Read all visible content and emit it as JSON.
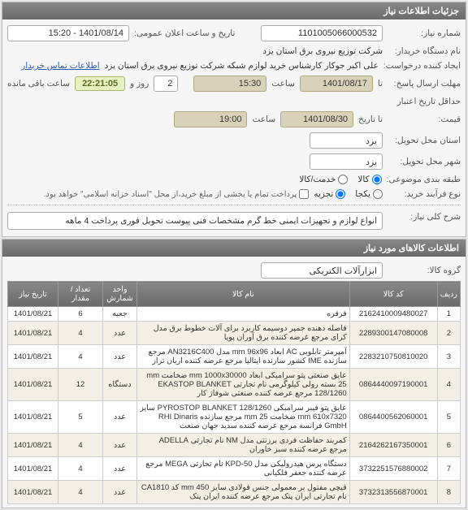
{
  "header": {
    "title": "جزئیات اطلاعات نیاز"
  },
  "labels": {
    "need_no": "شماره نیاز:",
    "pub_dt": "تاریخ و ساعت اعلان عمومی:",
    "buyer_org": "نام دستگاه خریدار:",
    "creator": "ایجاد کننده درخواست:",
    "buyer_contact": "اطلاعات تماس خریدار",
    "reply_deadline": "مهلت ارسال پاسخ:",
    "to": "تا",
    "time": "ساعت",
    "day_and": "روز و",
    "hours_left": "ساعت باقی مانده",
    "min_valid": "حداقل تاریخ اعتبار",
    "price": "قیمت:",
    "to_date": "تا تاریخ",
    "delivery_state": "استان محل تحویل:",
    "delivery_city": "شهر محل تحویل:",
    "budget_class": "طبقه بندی موضوعی:",
    "goods": "کالا",
    "service": "خدمت/کالا",
    "buy_process": "نوع فرآیند خرید:",
    "single": "یکجا",
    "partial": "تجزیه",
    "partial_note": "پرداخت تمام یا بخشی از مبلغ خرید،از محل \"اسناد خزانه اسلامی\" خواهد بود.",
    "main_desc": "شرح کلی نیاز:",
    "items_hdr": "اطلاعات کالاهای مورد نیاز",
    "group": "گروه کالا:"
  },
  "values": {
    "need_no": "1101005066000532",
    "pub_dt": "1401/08/14 - 15:20",
    "buyer_org": "شرکت توزیع نیروی برق استان یزد",
    "creator": "علی اکبر جوکار  کارشناس خرید لوازم شبکه  شرکت توزیع نیروی برق استان یزد",
    "reply_date": "1401/08/17",
    "reply_time": "15:30",
    "days_left": "2",
    "timer": "22:21:05",
    "valid_date": "1401/08/30",
    "valid_time": "19:00",
    "state": "یزد",
    "city": "یزد",
    "main_desc": "انواع لوازم و تجهیزات ایمنی خط گرم  مشخصات فنی پیوست تحویل  فوری پرداخت 4 ماهه",
    "group": "ابزارآلات الکتریکی"
  },
  "table": {
    "headers": {
      "idx": "ردیف",
      "code": "کد کالا",
      "name": "نام کالا",
      "unit": "واحد شمارش",
      "qty": "تعداد / مقدار",
      "date": "تاریخ نیاز"
    },
    "rows": [
      {
        "idx": "1",
        "code": "2162410009480027",
        "name": "قرقره",
        "unit": "جعبه",
        "qty": "6",
        "date": "1401/08/21"
      },
      {
        "idx": "2",
        "code": "2289300147080008",
        "name": "فاصله دهنده جمپر دوسیمه کاربرد برای آلات خطوط برق مدل کراى مرجع عرضه کننده برق آوران پویا",
        "unit": "عدد",
        "qty": "4",
        "date": "1401/08/21"
      },
      {
        "idx": "3",
        "code": "2283210750810020",
        "name": "آمپرمتر تابلویی AC ابعاد mm 96x96 مدل AN3216C400 مرجع سازنده IME کشور سازنده ایتالیا مرجع عرضه کننده اریان تراز",
        "unit": "عدد",
        "qty": "4",
        "date": "1401/08/21"
      },
      {
        "idx": "4",
        "code": "0864440097190001",
        "name": "عایق صنعتی پتو سرامیکی ابعاد mm 1000x30000 ضخامت mm 25 بسته رولی کیلوگرمی نام تجارتی EKASTOP BLANKET 128/1260 مرجع عرضه کننده صنعتی شوفاژ کار",
        "unit": "دستگاه",
        "qty": "12",
        "date": "1401/08/21"
      },
      {
        "idx": "5",
        "code": "0864400562060001",
        "name": "عایق پتو فیبر سرامیکی PYROSTOP BLANKET 128/1260 سایز mm 610x7320 ضخامت mm 25 مرجع سازنده RHI Dinaris GmbH فرانسه مرجع عرضه کننده سدید جهان صنعت",
        "unit": "عدد",
        "qty": "5",
        "date": "1401/08/21"
      },
      {
        "idx": "6",
        "code": "2164262167350001",
        "name": "کمربند حفاظت فردی برزنتی مدل NM نام تجارتی ADELLA مرجع عرضه کننده سبز خاوران",
        "unit": "عدد",
        "qty": "4",
        "date": "1401/08/21"
      },
      {
        "idx": "7",
        "code": "3732251576880002",
        "name": "دستگاه پرس هیدرولیکی مدل KPD-50 نام تجارتی MEGA مرجع عرضه کننده جعفر فلکیانی",
        "unit": "عدد",
        "qty": "4",
        "date": "1401/08/21"
      },
      {
        "idx": "8",
        "code": "3732313556870001",
        "name": "قیچی مفتول بر معمولی جنس فولادی سایز mm 450 کد CA1810 نام تجارتی ایران پتک مرجع عرضه کننده ایران پتک",
        "unit": "عدد",
        "qty": "4",
        "date": "1401/08/21"
      }
    ]
  }
}
